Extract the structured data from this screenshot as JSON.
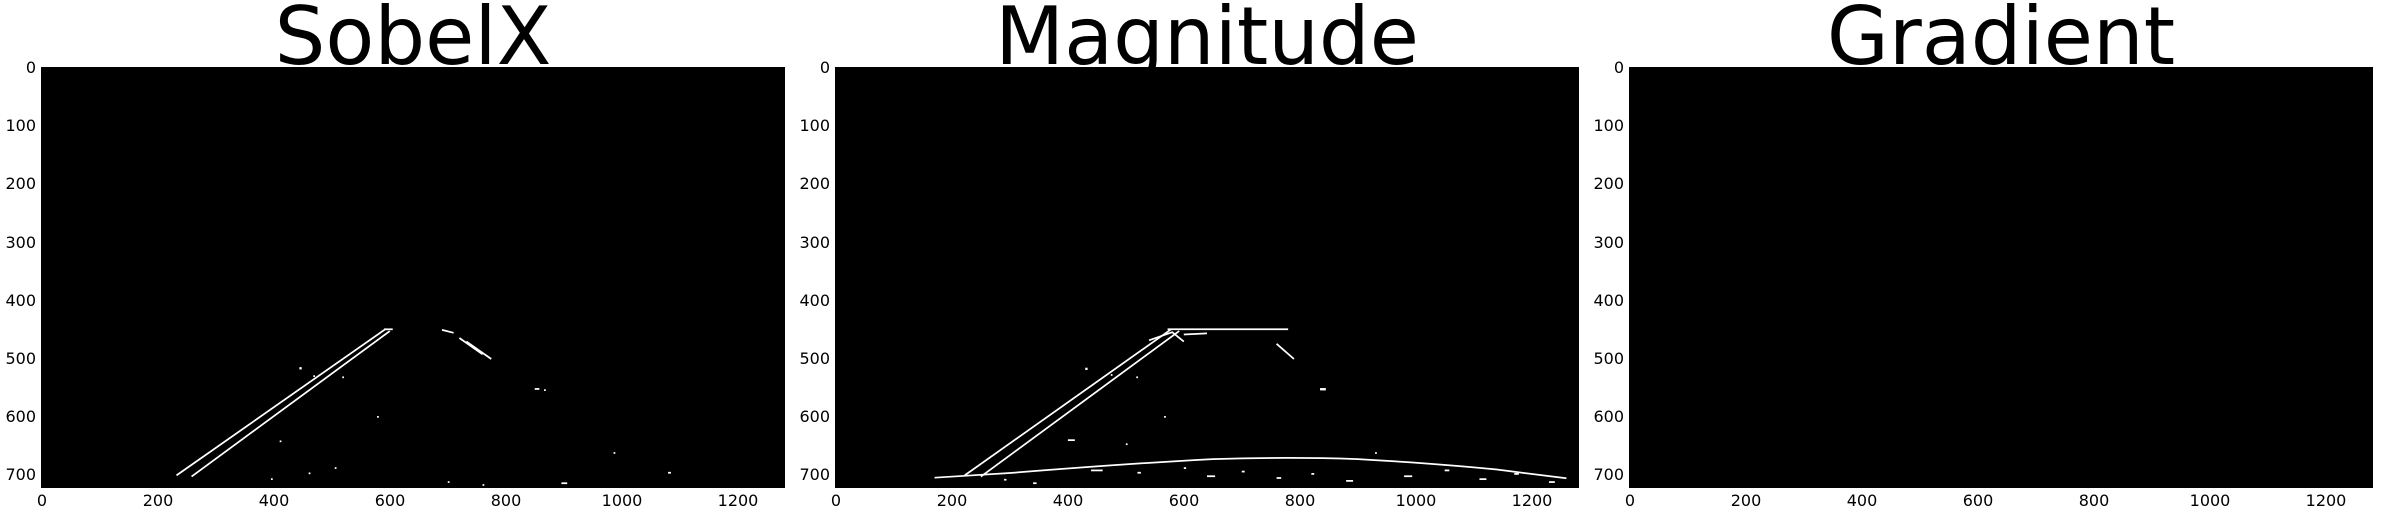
{
  "panels": [
    {
      "title": "SobelX",
      "x_ticks": [
        "0",
        "200",
        "400",
        "600",
        "800",
        "1000",
        "1200"
      ],
      "y_ticks": [
        "0",
        "100",
        "200",
        "300",
        "400",
        "500",
        "600",
        "700"
      ]
    },
    {
      "title": "Magnitude",
      "x_ticks": [
        "0",
        "200",
        "400",
        "600",
        "800",
        "1000",
        "1200"
      ],
      "y_ticks": [
        "0",
        "100",
        "200",
        "300",
        "400",
        "500",
        "600",
        "700"
      ]
    },
    {
      "title": "Gradient",
      "x_ticks": [
        "0",
        "200",
        "400",
        "600",
        "800",
        "1000",
        "1200"
      ],
      "y_ticks": [
        "0",
        "100",
        "200",
        "300",
        "400",
        "500",
        "600",
        "700"
      ]
    }
  ],
  "image_extent": {
    "x": [
      0,
      1280
    ],
    "y": [
      0,
      720
    ]
  },
  "colors": {
    "background": "#000000",
    "edge": "#ffffff"
  }
}
